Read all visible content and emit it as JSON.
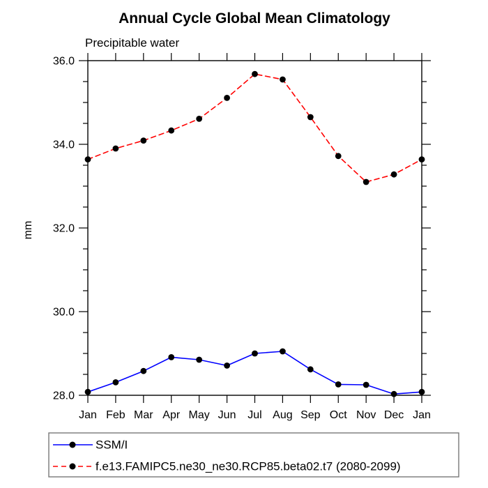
{
  "chart_data": {
    "type": "line",
    "title": "Annual Cycle Global Mean Climatology",
    "subtitle": "Precipitable water",
    "xlabel": "",
    "ylabel": "mm",
    "x_tick_labels": [
      "Jan",
      "Feb",
      "Mar",
      "Apr",
      "May",
      "Jun",
      "Jul",
      "Aug",
      "Sep",
      "Oct",
      "Nov",
      "Dec",
      "Jan"
    ],
    "ylim": [
      28.0,
      36.0
    ],
    "y_ticks": [
      {
        "value": 28.0,
        "label": "28.0"
      },
      {
        "value": 30.0,
        "label": "30.0"
      },
      {
        "value": 32.0,
        "label": "32.0"
      },
      {
        "value": 34.0,
        "label": "34.0"
      },
      {
        "value": 36.0,
        "label": "36.0"
      }
    ],
    "y_minor_step": 0.5,
    "grid": false,
    "legend_position": "bottom-left-box",
    "marker_color": "#000000",
    "series": [
      {
        "name": "SSM/I",
        "color": "#0000ff",
        "line_style": "solid",
        "marker": "filled-circle",
        "values": [
          28.08,
          28.31,
          28.58,
          28.91,
          28.85,
          28.71,
          29.0,
          29.05,
          28.62,
          28.26,
          28.25,
          28.03,
          28.08
        ]
      },
      {
        "name": "f.e13.FAMIPC5.ne30_ne30.RCP85.beta02.t7 (2080-2099)",
        "color": "#ff0000",
        "line_style": "dashed",
        "marker": "filled-circle",
        "values": [
          33.64,
          33.9,
          34.09,
          34.33,
          34.61,
          35.11,
          35.68,
          35.55,
          34.65,
          33.72,
          33.1,
          33.28,
          33.64
        ]
      }
    ]
  }
}
